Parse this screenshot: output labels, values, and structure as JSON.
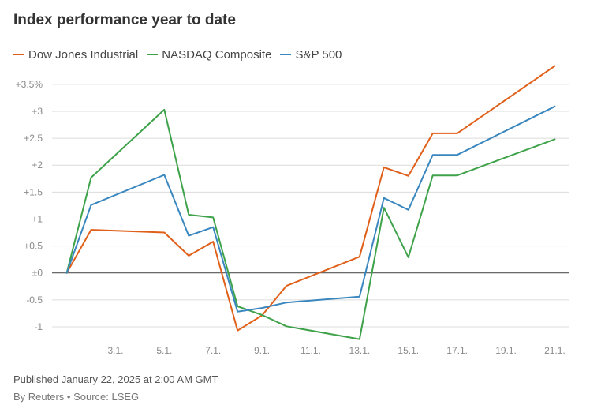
{
  "header": {
    "title": "Index performance year to date"
  },
  "footer": {
    "published": "Published January 22, 2025 at 2:00 AM GMT",
    "source": "By Reuters • Source: LSEG"
  },
  "chart_data": {
    "type": "line",
    "title": "Index performance year to date",
    "xlabel": "",
    "ylabel": "",
    "x": [
      1,
      2,
      5,
      6,
      7,
      8,
      9,
      10,
      13,
      14,
      15,
      16,
      17,
      21
    ],
    "x_ticks": [
      3,
      5,
      7,
      9,
      11,
      13,
      15,
      17,
      19,
      21
    ],
    "x_tick_labels": [
      "3.1.",
      "5.1.",
      "7.1.",
      "9.1.",
      "11.1.",
      "13.1.",
      "15.1.",
      "17.1.",
      "19.1.",
      "21.1."
    ],
    "xlim": [
      0.4,
      21.6
    ],
    "y_ticks": [
      -1,
      -0.5,
      0,
      0.5,
      1,
      1.5,
      2,
      2.5,
      3,
      3.5
    ],
    "y_tick_labels": [
      "-1",
      "-0.5",
      "±0",
      "+0.5",
      "+1",
      "+1.5",
      "+2",
      "+2.5",
      "+3",
      "+3.5%"
    ],
    "ylim": [
      -1.25,
      3.6
    ],
    "grid": true,
    "zero_line": true,
    "legend_position": "top-left",
    "series": [
      {
        "name": "Dow Jones Industrial",
        "color": "#e0601a",
        "values": [
          0,
          0.8,
          0.75,
          0.32,
          0.58,
          -1.07,
          -0.79,
          -0.24,
          0.3,
          1.96,
          1.8,
          2.59,
          2.59,
          3.84
        ]
      },
      {
        "name": "NASDAQ Composite",
        "color": "#3ea24a",
        "values": [
          0,
          1.77,
          3.03,
          1.08,
          1.03,
          -0.62,
          -0.78,
          -0.99,
          -1.23,
          1.21,
          0.29,
          1.81,
          1.81,
          2.48
        ]
      },
      {
        "name": "S&P 500",
        "color": "#3a87bf",
        "values": [
          0,
          1.26,
          1.82,
          0.69,
          0.85,
          -0.72,
          -0.65,
          -0.55,
          -0.44,
          1.39,
          1.17,
          2.19,
          2.19,
          3.09
        ]
      }
    ]
  }
}
